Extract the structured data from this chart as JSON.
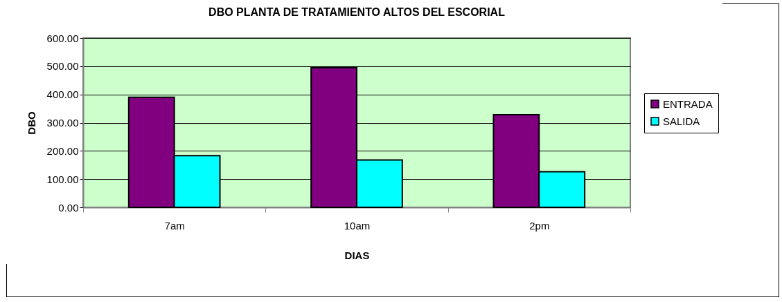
{
  "chart_data": {
    "type": "bar",
    "title": "DBO PLANTA DE TRATAMIENTO ALTOS DEL ESCORIAL",
    "xlabel": "DIAS",
    "ylabel": "DBO",
    "categories": [
      "7am",
      "10am",
      "2pm"
    ],
    "series": [
      {
        "name": "ENTRADA",
        "color": "#800080",
        "values": [
          390,
          495,
          328
        ]
      },
      {
        "name": "SALIDA",
        "color": "#00ffff",
        "values": [
          183,
          168,
          126
        ]
      }
    ],
    "ylim": [
      0,
      600
    ],
    "yticks": [
      {
        "value": 0,
        "label": "0.00"
      },
      {
        "value": 100,
        "label": "100.00"
      },
      {
        "value": 200,
        "label": "200.00"
      },
      {
        "value": 300,
        "label": "300.00"
      },
      {
        "value": 400,
        "label": "400.00"
      },
      {
        "value": 500,
        "label": "500.00"
      },
      {
        "value": 600,
        "label": "600.00"
      }
    ],
    "grid": "y",
    "legend": "right"
  }
}
